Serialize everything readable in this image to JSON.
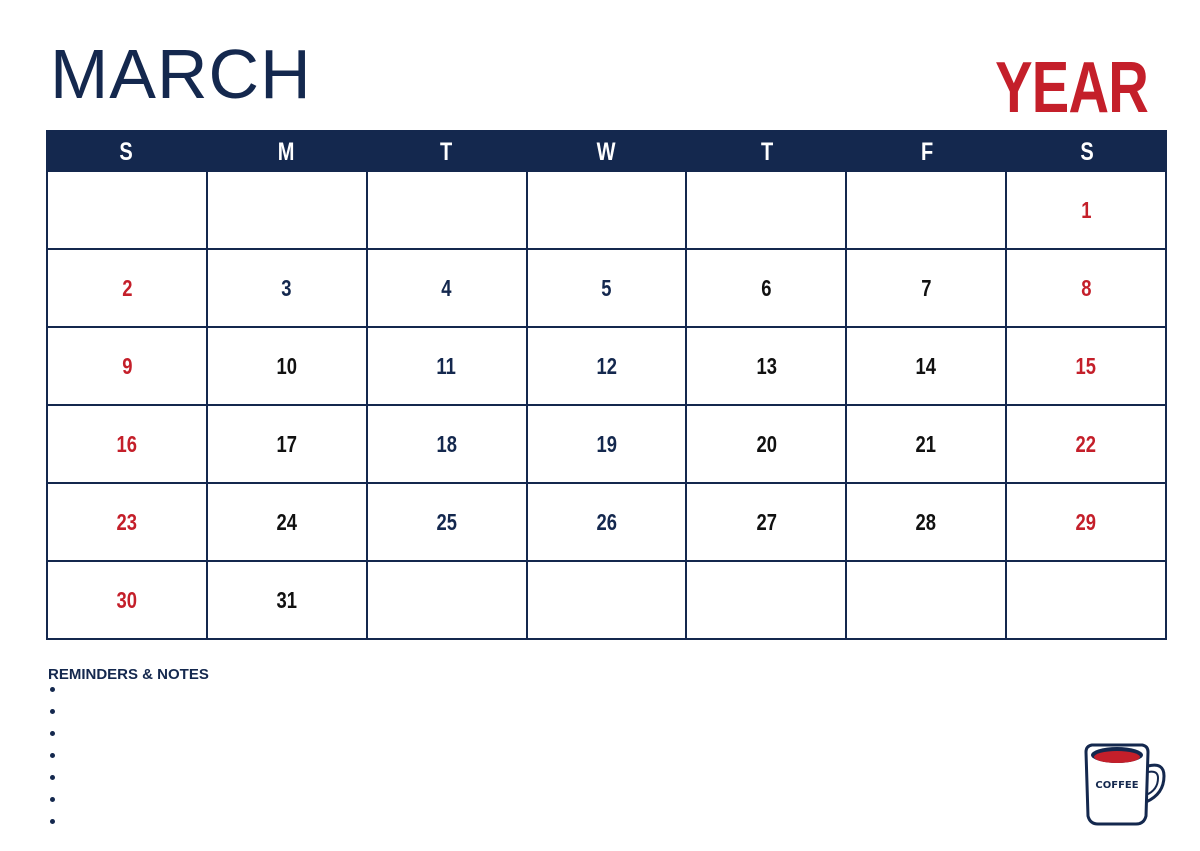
{
  "header": {
    "month": "MARCH",
    "year": "YEAR"
  },
  "weekdays": [
    "S",
    "M",
    "T",
    "W",
    "T",
    "F",
    "S"
  ],
  "colors": {
    "navy": "#14284e",
    "red": "#c41f2a",
    "black": "#111111"
  },
  "weeks": [
    [
      null,
      null,
      null,
      null,
      null,
      null,
      {
        "day": "1",
        "color": "red"
      }
    ],
    [
      {
        "day": "2",
        "color": "red"
      },
      {
        "day": "3",
        "color": "navy"
      },
      {
        "day": "4",
        "color": "navy"
      },
      {
        "day": "5",
        "color": "navy"
      },
      {
        "day": "6",
        "color": "black"
      },
      {
        "day": "7",
        "color": "black"
      },
      {
        "day": "8",
        "color": "red"
      }
    ],
    [
      {
        "day": "9",
        "color": "red"
      },
      {
        "day": "10",
        "color": "black"
      },
      {
        "day": "11",
        "color": "navy"
      },
      {
        "day": "12",
        "color": "navy"
      },
      {
        "day": "13",
        "color": "black"
      },
      {
        "day": "14",
        "color": "black"
      },
      {
        "day": "15",
        "color": "red"
      }
    ],
    [
      {
        "day": "16",
        "color": "red"
      },
      {
        "day": "17",
        "color": "black"
      },
      {
        "day": "18",
        "color": "navy"
      },
      {
        "day": "19",
        "color": "navy"
      },
      {
        "day": "20",
        "color": "black"
      },
      {
        "day": "21",
        "color": "black"
      },
      {
        "day": "22",
        "color": "red"
      }
    ],
    [
      {
        "day": "23",
        "color": "red"
      },
      {
        "day": "24",
        "color": "black"
      },
      {
        "day": "25",
        "color": "navy"
      },
      {
        "day": "26",
        "color": "navy"
      },
      {
        "day": "27",
        "color": "black"
      },
      {
        "day": "28",
        "color": "black"
      },
      {
        "day": "29",
        "color": "red"
      }
    ],
    [
      {
        "day": "30",
        "color": "red"
      },
      {
        "day": "31",
        "color": "black"
      },
      null,
      null,
      null,
      null,
      null
    ]
  ],
  "notes": {
    "title": "REMINDERS & NOTES",
    "bullet_count": 7
  },
  "mug": {
    "label": "COFFEE",
    "icon": "coffee-mug-icon"
  }
}
